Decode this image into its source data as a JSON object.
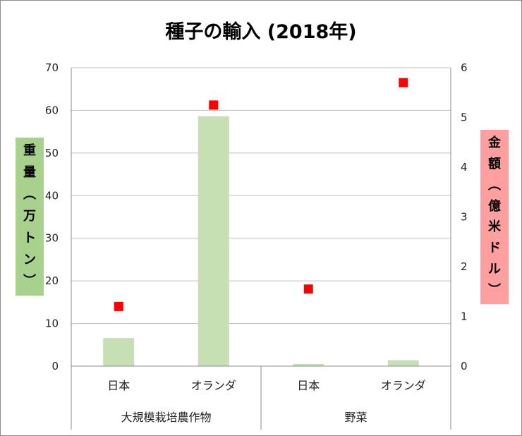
{
  "chart_data": {
    "type": "bar+scatter",
    "title": "種子の輸入 (2018年)",
    "groups": [
      {
        "label": "大規模栽培農作物",
        "categories": [
          "日本",
          "オランダ"
        ]
      },
      {
        "label": "野菜",
        "categories": [
          "日本",
          "オランダ"
        ]
      }
    ],
    "categories": [
      "日本",
      "オランダ",
      "日本",
      "オランダ"
    ],
    "series": [
      {
        "type": "bar",
        "axis": "left",
        "color": "#c6e0b4",
        "values": [
          6.6,
          58.6,
          0.5,
          1.4
        ]
      },
      {
        "type": "scatter",
        "axis": "right",
        "color": "#ff0000",
        "marker": "square",
        "values": [
          1.2,
          5.25,
          1.55,
          5.7
        ]
      }
    ],
    "ylabel_left": "重量（万トン）",
    "ylabel_right": "金額（億米ドル）",
    "ylim_left": [
      0,
      70
    ],
    "ylim_right": [
      0,
      6
    ],
    "yticks_left": [
      "0",
      "10",
      "20",
      "30",
      "40",
      "50",
      "60",
      "70"
    ],
    "yticks_right": [
      "0",
      "1",
      "2",
      "3",
      "4",
      "5",
      "6"
    ],
    "grid": true,
    "ylabel_left_bg": "#a9d18e",
    "ylabel_right_bg": "#ff9f9f"
  }
}
